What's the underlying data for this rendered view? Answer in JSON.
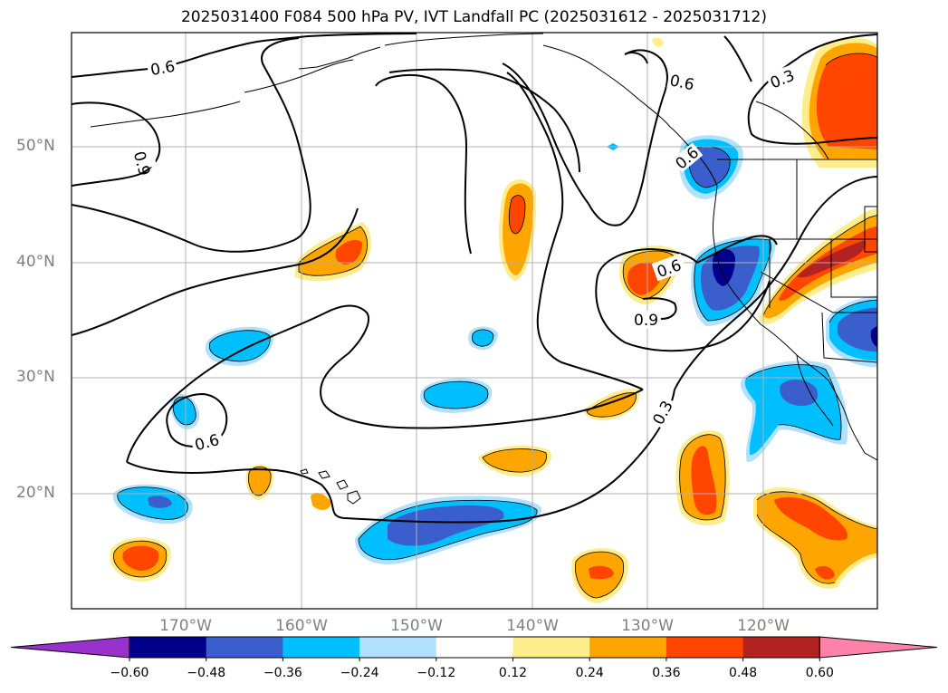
{
  "title": "2025031400 F084 500 hPa PV, IVT Landfall PC (2025031612 - 2025031712)",
  "map": {
    "lat_labels": [
      "50°N",
      "40°N",
      "30°N",
      "20°N"
    ],
    "lon_labels": [
      "170°W",
      "160°W",
      "150°W",
      "140°W",
      "130°W",
      "120°W"
    ],
    "contour_labels": [
      "0.6",
      "0.9",
      "0.6",
      "0.3",
      "0.6",
      "0.6",
      "0.9",
      "0.3",
      "0.6"
    ]
  },
  "colorbar": {
    "ticks": [
      "−0.60",
      "−0.48",
      "−0.36",
      "−0.24",
      "−0.12",
      "0.12",
      "0.24",
      "0.36",
      "0.48",
      "0.60"
    ],
    "colors": [
      "#9932cc",
      "#00008b",
      "#3a5fcd",
      "#00bfff",
      "#b0e2ff",
      "#ffffff",
      "#ffec8b",
      "#ffa500",
      "#ff4500",
      "#b22222",
      "#ff82ab"
    ]
  }
}
